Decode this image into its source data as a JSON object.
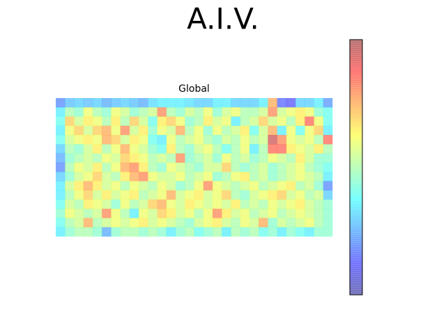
{
  "chart_data": {
    "type": "heatmap",
    "title": "A.I.V.",
    "subtitle": "Global",
    "colormap": "jet",
    "alpha": 0.5,
    "zlim": [
      0,
      1
    ],
    "values": [
      [
        0.2,
        0.28,
        0.3,
        0.28,
        0.3,
        0.25,
        0.28,
        0.3,
        0.28,
        0.25,
        0.32,
        0.35,
        0.35,
        0.35,
        0.33,
        0.3,
        0.3,
        0.35,
        0.35,
        0.3,
        0.3,
        0.3,
        0.35,
        0.75,
        0.15,
        0.12,
        0.3,
        0.3,
        0.35,
        0.22
      ],
      [
        0.35,
        0.5,
        0.45,
        0.6,
        0.5,
        0.45,
        0.6,
        0.55,
        0.45,
        0.5,
        0.55,
        0.8,
        0.5,
        0.45,
        0.55,
        0.5,
        0.6,
        0.45,
        0.55,
        0.6,
        0.5,
        0.5,
        0.55,
        0.8,
        0.55,
        0.6,
        0.65,
        0.6,
        0.45,
        0.4
      ],
      [
        0.4,
        0.7,
        0.55,
        0.65,
        0.6,
        0.5,
        0.65,
        0.5,
        0.7,
        0.55,
        0.4,
        0.65,
        0.7,
        0.6,
        0.45,
        0.5,
        0.65,
        0.55,
        0.6,
        0.35,
        0.5,
        0.55,
        0.7,
        0.55,
        0.6,
        0.5,
        0.65,
        0.85,
        0.6,
        0.4
      ],
      [
        0.35,
        0.6,
        0.7,
        0.55,
        0.7,
        0.75,
        0.6,
        0.8,
        0.55,
        0.65,
        0.45,
        0.6,
        0.55,
        0.75,
        0.5,
        0.6,
        0.45,
        0.6,
        0.5,
        0.55,
        0.65,
        0.4,
        0.55,
        0.75,
        0.35,
        0.6,
        0.4,
        0.6,
        0.7,
        0.35
      ],
      [
        0.4,
        0.55,
        0.6,
        0.65,
        0.6,
        0.75,
        0.7,
        0.55,
        0.65,
        0.6,
        0.4,
        0.35,
        0.6,
        0.5,
        0.55,
        0.6,
        0.5,
        0.45,
        0.55,
        0.5,
        0.6,
        0.5,
        0.55,
        0.95,
        0.8,
        0.6,
        0.55,
        0.6,
        0.5,
        0.85
      ],
      [
        0.3,
        0.5,
        0.45,
        0.55,
        0.65,
        0.5,
        0.6,
        0.75,
        0.6,
        0.55,
        0.45,
        0.4,
        0.65,
        0.5,
        0.45,
        0.55,
        0.6,
        0.5,
        0.4,
        0.5,
        0.6,
        0.35,
        0.5,
        0.85,
        0.85,
        0.65,
        0.6,
        0.55,
        0.65,
        0.5
      ],
      [
        0.25,
        0.45,
        0.5,
        0.55,
        0.5,
        0.6,
        0.55,
        0.7,
        0.65,
        0.6,
        0.5,
        0.55,
        0.5,
        0.8,
        0.45,
        0.5,
        0.55,
        0.45,
        0.6,
        0.5,
        0.55,
        0.45,
        0.5,
        0.6,
        0.55,
        0.5,
        0.65,
        0.55,
        0.45,
        0.45
      ],
      [
        0.2,
        0.5,
        0.6,
        0.55,
        0.65,
        0.5,
        0.6,
        0.75,
        0.8,
        0.65,
        0.5,
        0.45,
        0.6,
        0.55,
        0.5,
        0.45,
        0.55,
        0.55,
        0.7,
        0.5,
        0.45,
        0.5,
        0.55,
        0.45,
        0.5,
        0.55,
        0.6,
        0.5,
        0.45,
        0.4
      ],
      [
        0.3,
        0.45,
        0.55,
        0.6,
        0.7,
        0.55,
        0.5,
        0.65,
        0.75,
        0.8,
        0.6,
        0.55,
        0.55,
        0.6,
        0.5,
        0.55,
        0.6,
        0.45,
        0.5,
        0.6,
        0.65,
        0.5,
        0.55,
        0.45,
        0.5,
        0.55,
        0.6,
        0.55,
        0.5,
        0.35
      ],
      [
        0.35,
        0.55,
        0.65,
        0.75,
        0.65,
        0.55,
        0.6,
        0.5,
        0.6,
        0.55,
        0.5,
        0.6,
        0.55,
        0.45,
        0.5,
        0.6,
        0.8,
        0.6,
        0.55,
        0.5,
        0.55,
        0.6,
        0.5,
        0.55,
        0.6,
        0.65,
        0.5,
        0.55,
        0.45,
        0.2
      ],
      [
        0.35,
        0.5,
        0.6,
        0.7,
        0.55,
        0.65,
        0.55,
        0.6,
        0.65,
        0.5,
        0.55,
        0.6,
        0.75,
        0.55,
        0.6,
        0.65,
        0.55,
        0.6,
        0.7,
        0.5,
        0.45,
        0.55,
        0.6,
        0.65,
        0.7,
        0.55,
        0.6,
        0.5,
        0.55,
        0.3
      ],
      [
        0.4,
        0.55,
        0.5,
        0.65,
        0.6,
        0.55,
        0.45,
        0.6,
        0.5,
        0.55,
        0.7,
        0.75,
        0.6,
        0.55,
        0.65,
        0.6,
        0.55,
        0.6,
        0.55,
        0.65,
        0.5,
        0.55,
        0.5,
        0.6,
        0.55,
        0.6,
        0.65,
        0.55,
        0.5,
        0.45
      ],
      [
        0.45,
        0.6,
        0.55,
        0.5,
        0.55,
        0.8,
        0.6,
        0.5,
        0.35,
        0.6,
        0.55,
        0.7,
        0.65,
        0.55,
        0.6,
        0.5,
        0.6,
        0.8,
        0.65,
        0.55,
        0.6,
        0.5,
        0.55,
        0.6,
        0.5,
        0.55,
        0.6,
        0.55,
        0.5,
        0.45
      ],
      [
        0.4,
        0.5,
        0.55,
        0.75,
        0.5,
        0.55,
        0.6,
        0.55,
        0.6,
        0.65,
        0.55,
        0.6,
        0.55,
        0.5,
        0.45,
        0.55,
        0.6,
        0.65,
        0.55,
        0.5,
        0.6,
        0.55,
        0.75,
        0.45,
        0.55,
        0.5,
        0.55,
        0.6,
        0.5,
        0.45
      ],
      [
        0.35,
        0.45,
        0.5,
        0.5,
        0.45,
        0.25,
        0.45,
        0.5,
        0.5,
        0.45,
        0.5,
        0.45,
        0.35,
        0.45,
        0.5,
        0.4,
        0.45,
        0.5,
        0.35,
        0.5,
        0.45,
        0.5,
        0.4,
        0.45,
        0.35,
        0.45,
        0.4,
        0.35,
        0.45,
        0.45
      ]
    ]
  }
}
